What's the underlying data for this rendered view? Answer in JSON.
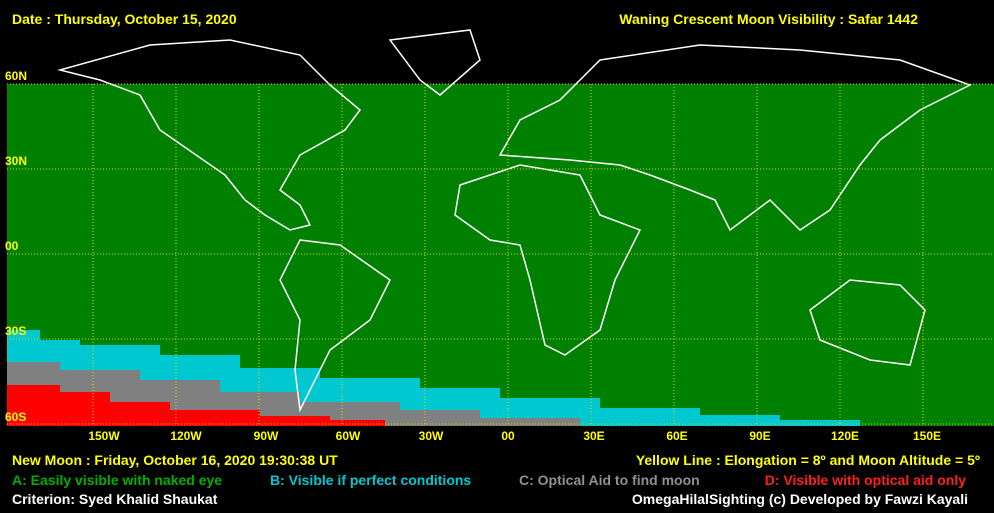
{
  "header": {
    "date": "Date : Thursday, October 15, 2020",
    "title": "Waning Crescent Moon Visibility : Safar 1442"
  },
  "latitude_labels": [
    "60N",
    "30N",
    "00",
    "30S",
    "60S"
  ],
  "longitude_labels": [
    "150W",
    "120W",
    "90W",
    "60W",
    "30W",
    "00",
    "30E",
    "60E",
    "90E",
    "120E",
    "150E"
  ],
  "footer": {
    "new_moon": "New Moon : Friday, October 16, 2020  19:30:38  UT",
    "yellow_line": "Yellow Line : Elongation = 8º  and Moon Altitude = 5º",
    "legend": [
      "A: Easily visible with naked eye",
      "B: Visible if perfect conditions",
      "C: Optical Aid to find moon",
      "D: Visible with optical aid only"
    ],
    "criterion": "Criterion: Syed Khalid Shaukat",
    "credit": "OmegaHilalSighting  (c)  Developed by Fawzi Kayali"
  }
}
